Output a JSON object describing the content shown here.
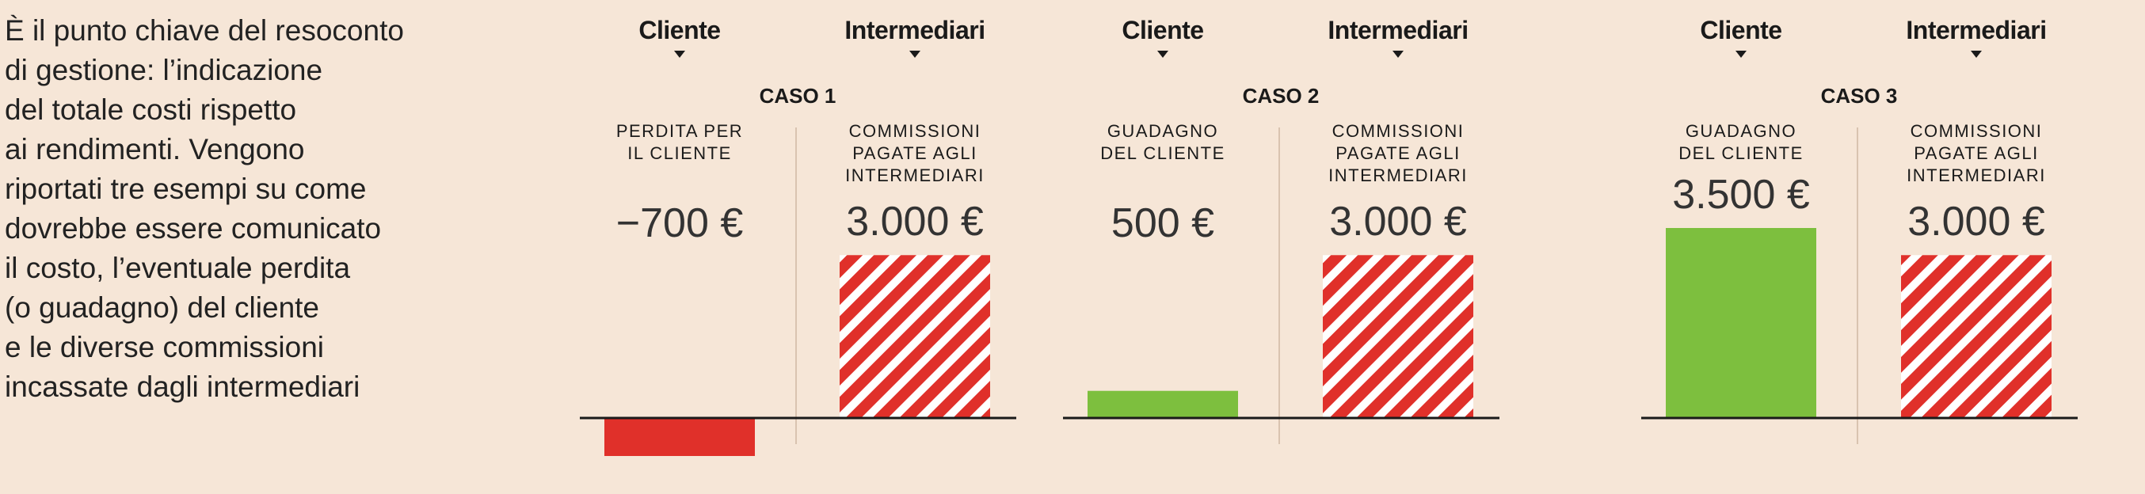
{
  "intro": "È il punto chiave del resoconto\ndi gestione: l’indicazione\ndel totale costi rispetto\nai rendimenti. Vengono\nriportati tre esempi su come\ndovrebbe essere comunicato\nil costo, l’eventuale perdita\n(o guadagno) del cliente\ne le diverse commissioni\nincassate dagli intermediari",
  "chart_data": [
    {
      "type": "bar",
      "title": "CASO 1",
      "headers": [
        "Cliente",
        "Intermediari"
      ],
      "categories": [
        "PERDITA PER\nIL CLIENTE",
        "COMMISSIONI\nPAGATE AGLI\nINTERMEDIARI"
      ],
      "values": [
        -700,
        3000
      ],
      "value_labels": [
        "−700 €",
        "3.000 €"
      ],
      "colors": [
        "#e0302a",
        "#e0302a"
      ],
      "hatched": [
        false,
        true
      ]
    },
    {
      "type": "bar",
      "title": "CASO 2",
      "headers": [
        "Cliente",
        "Intermediari"
      ],
      "categories": [
        "GUADAGNO\nDEL CLIENTE",
        "COMMISSIONI\nPAGATE AGLI\nINTERMEDIARI"
      ],
      "values": [
        500,
        3000
      ],
      "value_labels": [
        "500 €",
        "3.000 €"
      ],
      "colors": [
        "#7dbf3e",
        "#e0302a"
      ],
      "hatched": [
        false,
        true
      ]
    },
    {
      "type": "bar",
      "title": "CASO 3",
      "headers": [
        "Cliente",
        "Intermediari"
      ],
      "categories": [
        "GUADAGNO\nDEL CLIENTE",
        "COMMISSIONI\nPAGATE AGLI\nINTERMEDIARI"
      ],
      "values": [
        3500,
        3000
      ],
      "value_labels": [
        "3.500 €",
        "3.000 €"
      ],
      "colors": [
        "#7dbf3e",
        "#e0302a"
      ],
      "hatched": [
        false,
        true
      ]
    }
  ]
}
